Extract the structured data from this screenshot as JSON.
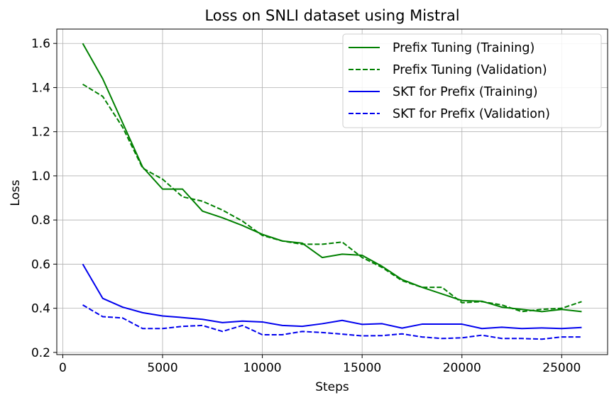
{
  "chart_data": {
    "type": "line",
    "title": "Loss on SNLI dataset using Mistral",
    "xlabel": "Steps",
    "ylabel": "Loss",
    "xlim": [
      -300,
      27300
    ],
    "ylim": [
      0.19,
      1.665
    ],
    "xticks": [
      0,
      5000,
      10000,
      15000,
      20000,
      25000
    ],
    "yticks": [
      0.2,
      0.4,
      0.6,
      0.8,
      1.0,
      1.2,
      1.4,
      1.6
    ],
    "ytick_labels": [
      "0.2",
      "0.4",
      "0.6",
      "0.8",
      "1.0",
      "1.2",
      "1.4",
      "1.6"
    ],
    "grid": true,
    "legend_position": "top-right",
    "x": [
      1000,
      2000,
      3000,
      4000,
      5000,
      6000,
      7000,
      8000,
      9000,
      10000,
      11000,
      12000,
      13000,
      14000,
      15000,
      16000,
      17000,
      18000,
      19000,
      20000,
      21000,
      22000,
      23000,
      24000,
      25000,
      26000
    ],
    "series": [
      {
        "name": "Prefix Tuning (Training)",
        "color": "#008000",
        "dash": "solid",
        "values": [
          1.6,
          1.44,
          1.24,
          1.04,
          0.94,
          0.94,
          0.84,
          0.81,
          0.775,
          0.735,
          0.705,
          0.695,
          0.63,
          0.645,
          0.64,
          0.59,
          0.53,
          0.495,
          0.465,
          0.435,
          0.432,
          0.405,
          0.395,
          0.385,
          0.395,
          0.385
        ]
      },
      {
        "name": "Prefix Tuning (Validation)",
        "color": "#008000",
        "dash": "dashed",
        "values": [
          1.415,
          1.36,
          1.22,
          1.035,
          0.985,
          0.905,
          0.885,
          0.845,
          0.795,
          0.73,
          0.705,
          0.69,
          0.69,
          0.7,
          0.63,
          0.585,
          0.525,
          0.495,
          0.495,
          0.425,
          0.43,
          0.415,
          0.385,
          0.395,
          0.4,
          0.43
        ]
      },
      {
        "name": "SKT for Prefix (Training)",
        "color": "#0000ee",
        "dash": "solid",
        "values": [
          0.6,
          0.445,
          0.405,
          0.38,
          0.365,
          0.358,
          0.35,
          0.335,
          0.342,
          0.338,
          0.322,
          0.318,
          0.33,
          0.345,
          0.327,
          0.33,
          0.31,
          0.328,
          0.328,
          0.328,
          0.308,
          0.314,
          0.308,
          0.311,
          0.308,
          0.313
        ]
      },
      {
        "name": "SKT for Prefix (Validation)",
        "color": "#0000ee",
        "dash": "dashed",
        "values": [
          0.415,
          0.362,
          0.356,
          0.308,
          0.308,
          0.318,
          0.322,
          0.295,
          0.322,
          0.28,
          0.28,
          0.295,
          0.29,
          0.283,
          0.275,
          0.276,
          0.284,
          0.27,
          0.263,
          0.266,
          0.278,
          0.263,
          0.263,
          0.26,
          0.27,
          0.27
        ]
      }
    ]
  }
}
